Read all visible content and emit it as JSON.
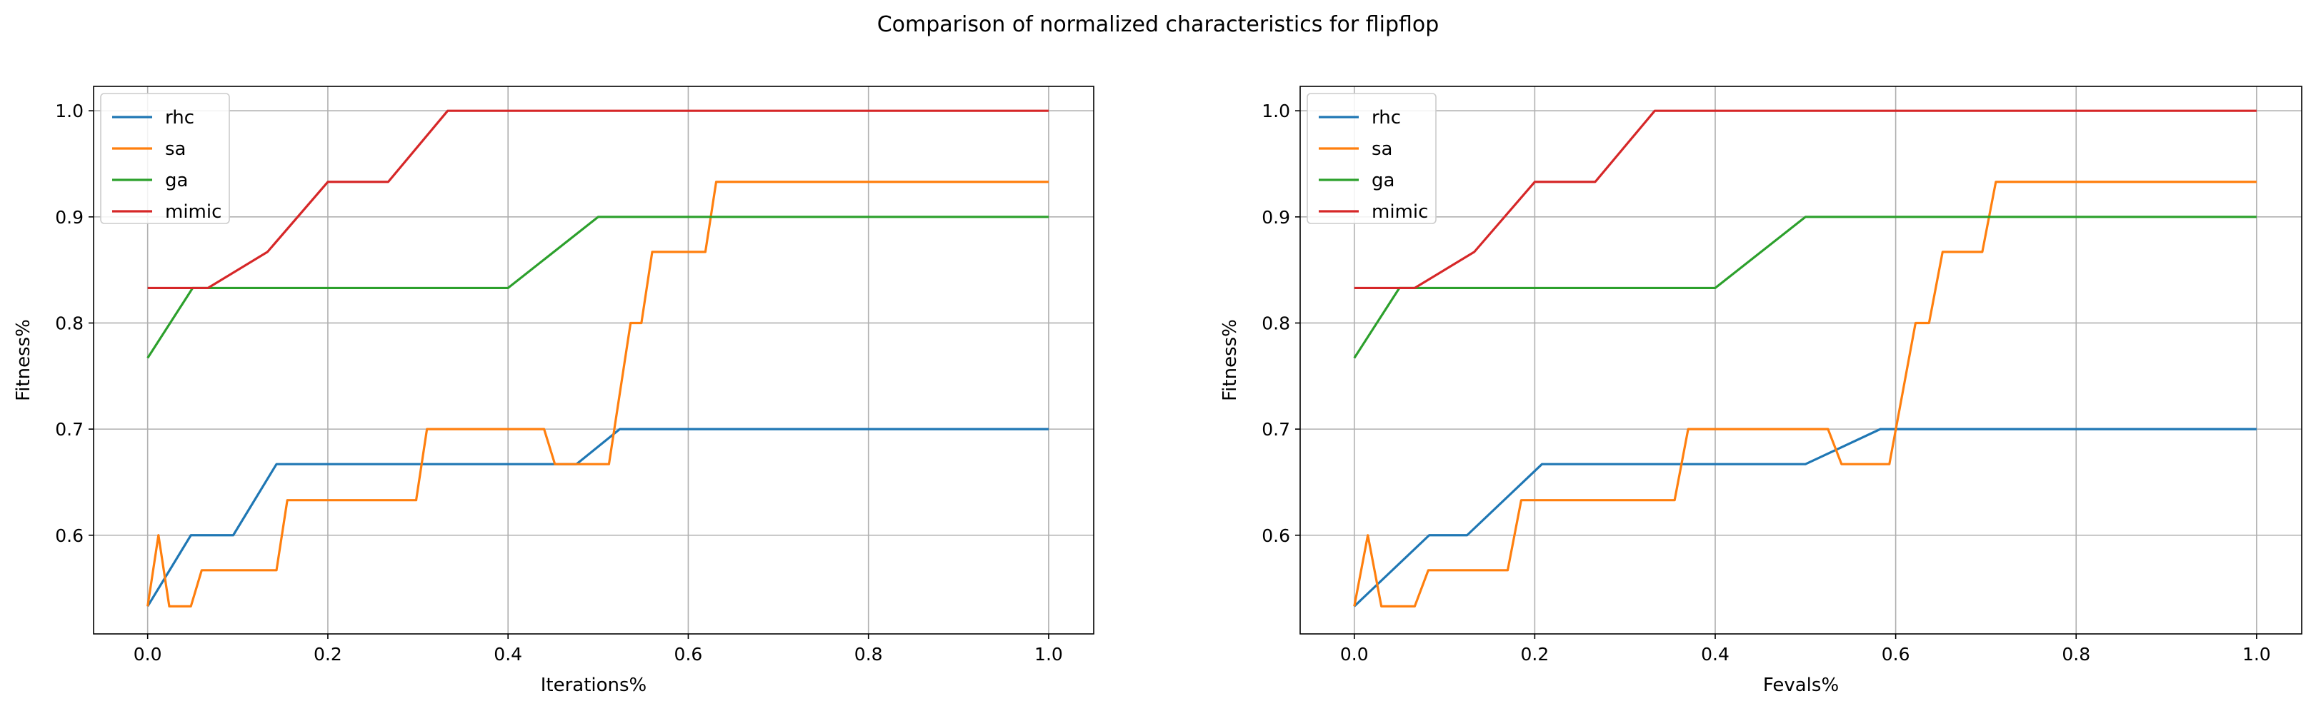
{
  "figure": {
    "title": "Comparison of normalized characteristics for flipflop"
  },
  "colors": {
    "rhc": "#1f77b4",
    "sa": "#ff7f0e",
    "ga": "#2ca02c",
    "mimic": "#d62728",
    "grid": "#b0b0b0",
    "axes": "#000000"
  },
  "chart_data": [
    {
      "type": "line",
      "title": "",
      "xlabel": "Iterations%",
      "ylabel": "Fitness%",
      "xlim": [
        -0.06,
        1.05
      ],
      "ylim": [
        0.507,
        1.023
      ],
      "xticks": [
        0.0,
        0.2,
        0.4,
        0.6,
        0.8,
        1.0
      ],
      "xtick_labels": [
        "0.0",
        "0.2",
        "0.4",
        "0.6",
        "0.8",
        "1.0"
      ],
      "yticks": [
        0.6,
        0.7,
        0.8,
        0.9,
        1.0
      ],
      "ytick_labels": [
        "0.6",
        "0.7",
        "0.8",
        "0.9",
        "1.0"
      ],
      "grid": true,
      "legend": "top-left",
      "series": [
        {
          "name": "rhc",
          "color": "#1f77b4",
          "points": [
            [
              0,
              0.533
            ],
            [
              0.048,
              0.6
            ],
            [
              0.095,
              0.6
            ],
            [
              0.143,
              0.667
            ],
            [
              0.476,
              0.667
            ],
            [
              0.524,
              0.7
            ],
            [
              1.0,
              0.7
            ]
          ]
        },
        {
          "name": "sa",
          "color": "#ff7f0e",
          "points": [
            [
              0,
              0.533
            ],
            [
              0.012,
              0.6
            ],
            [
              0.024,
              0.533
            ],
            [
              0.048,
              0.533
            ],
            [
              0.06,
              0.567
            ],
            [
              0.143,
              0.567
            ],
            [
              0.155,
              0.633
            ],
            [
              0.298,
              0.633
            ],
            [
              0.31,
              0.7
            ],
            [
              0.44,
              0.7
            ],
            [
              0.452,
              0.667
            ],
            [
              0.512,
              0.667
            ],
            [
              0.536,
              0.8
            ],
            [
              0.548,
              0.8
            ],
            [
              0.56,
              0.867
            ],
            [
              0.619,
              0.867
            ],
            [
              0.631,
              0.933
            ],
            [
              1.0,
              0.933
            ]
          ]
        },
        {
          "name": "ga",
          "color": "#2ca02c",
          "points": [
            [
              0,
              0.767
            ],
            [
              0.05,
              0.833
            ],
            [
              0.4,
              0.833
            ],
            [
              0.5,
              0.9
            ],
            [
              1.0,
              0.9
            ]
          ]
        },
        {
          "name": "mimic",
          "color": "#d62728",
          "points": [
            [
              0,
              0.833
            ],
            [
              0.067,
              0.833
            ],
            [
              0.133,
              0.867
            ],
            [
              0.2,
              0.933
            ],
            [
              0.267,
              0.933
            ],
            [
              0.333,
              1.0
            ],
            [
              1.0,
              1.0
            ]
          ]
        }
      ]
    },
    {
      "type": "line",
      "title": "",
      "xlabel": "Fevals%",
      "ylabel": "Fitness%",
      "xlim": [
        -0.06,
        1.05
      ],
      "ylim": [
        0.507,
        1.023
      ],
      "xticks": [
        0.0,
        0.2,
        0.4,
        0.6,
        0.8,
        1.0
      ],
      "xtick_labels": [
        "0.0",
        "0.2",
        "0.4",
        "0.6",
        "0.8",
        "1.0"
      ],
      "yticks": [
        0.6,
        0.7,
        0.8,
        0.9,
        1.0
      ],
      "ytick_labels": [
        "0.6",
        "0.7",
        "0.8",
        "0.9",
        "1.0"
      ],
      "grid": true,
      "legend": "top-left",
      "series": [
        {
          "name": "rhc",
          "color": "#1f77b4",
          "points": [
            [
              0,
              0.533
            ],
            [
              0.083,
              0.6
            ],
            [
              0.125,
              0.6
            ],
            [
              0.208,
              0.667
            ],
            [
              0.5,
              0.667
            ],
            [
              0.583,
              0.7
            ],
            [
              1.0,
              0.7
            ]
          ]
        },
        {
          "name": "sa",
          "color": "#ff7f0e",
          "points": [
            [
              0,
              0.533
            ],
            [
              0.015,
              0.6
            ],
            [
              0.03,
              0.533
            ],
            [
              0.067,
              0.533
            ],
            [
              0.082,
              0.567
            ],
            [
              0.17,
              0.567
            ],
            [
              0.185,
              0.633
            ],
            [
              0.355,
              0.633
            ],
            [
              0.37,
              0.7
            ],
            [
              0.525,
              0.7
            ],
            [
              0.54,
              0.667
            ],
            [
              0.593,
              0.667
            ],
            [
              0.622,
              0.8
            ],
            [
              0.637,
              0.8
            ],
            [
              0.652,
              0.867
            ],
            [
              0.696,
              0.867
            ],
            [
              0.711,
              0.933
            ],
            [
              1.0,
              0.933
            ]
          ]
        },
        {
          "name": "ga",
          "color": "#2ca02c",
          "points": [
            [
              0,
              0.767
            ],
            [
              0.05,
              0.833
            ],
            [
              0.4,
              0.833
            ],
            [
              0.5,
              0.9
            ],
            [
              1.0,
              0.9
            ]
          ]
        },
        {
          "name": "mimic",
          "color": "#d62728",
          "points": [
            [
              0,
              0.833
            ],
            [
              0.067,
              0.833
            ],
            [
              0.133,
              0.867
            ],
            [
              0.2,
              0.933
            ],
            [
              0.267,
              0.933
            ],
            [
              0.333,
              1.0
            ],
            [
              1.0,
              1.0
            ]
          ]
        }
      ]
    }
  ]
}
